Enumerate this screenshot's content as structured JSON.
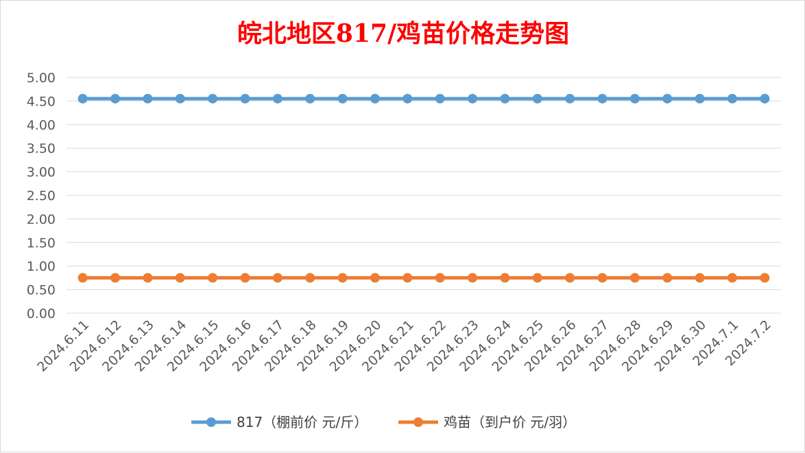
{
  "chart_data": {
    "type": "line",
    "title": "皖北地区817/鸡苗价格走势图",
    "xlabel": "",
    "ylabel": "",
    "categories": [
      "2024.6.11",
      "2024.6.12",
      "2024.6.13",
      "2024.6.14",
      "2024.6.15",
      "2024.6.16",
      "2024.6.17",
      "2024.6.18",
      "2024.6.19",
      "2024.6.20",
      "2024.6.21",
      "2024.6.22",
      "2024.6.23",
      "2024.6.24",
      "2024.6.25",
      "2024.6.26",
      "2024.6.27",
      "2024.6.28",
      "2024.6.29",
      "2024.6.30",
      "2024.7.1",
      "2024.7.2"
    ],
    "ylim": [
      0,
      5
    ],
    "yticks": [
      "0.00",
      "0.50",
      "1.00",
      "1.50",
      "2.00",
      "2.50",
      "3.00",
      "3.50",
      "4.00",
      "4.50",
      "5.00"
    ],
    "grid": true,
    "legend_position": "bottom",
    "series": [
      {
        "name": "817（棚前价 元/斤）",
        "color": "#5b9bd5",
        "values": [
          4.55,
          4.55,
          4.55,
          4.55,
          4.55,
          4.55,
          4.55,
          4.55,
          4.55,
          4.55,
          4.55,
          4.55,
          4.55,
          4.55,
          4.55,
          4.55,
          4.55,
          4.55,
          4.55,
          4.55,
          4.55,
          4.55
        ]
      },
      {
        "name": "鸡苗（到户价 元/羽）",
        "color": "#ed7d31",
        "values": [
          0.75,
          0.75,
          0.75,
          0.75,
          0.75,
          0.75,
          0.75,
          0.75,
          0.75,
          0.75,
          0.75,
          0.75,
          0.75,
          0.75,
          0.75,
          0.75,
          0.75,
          0.75,
          0.75,
          0.75,
          0.75,
          0.75
        ]
      }
    ]
  }
}
